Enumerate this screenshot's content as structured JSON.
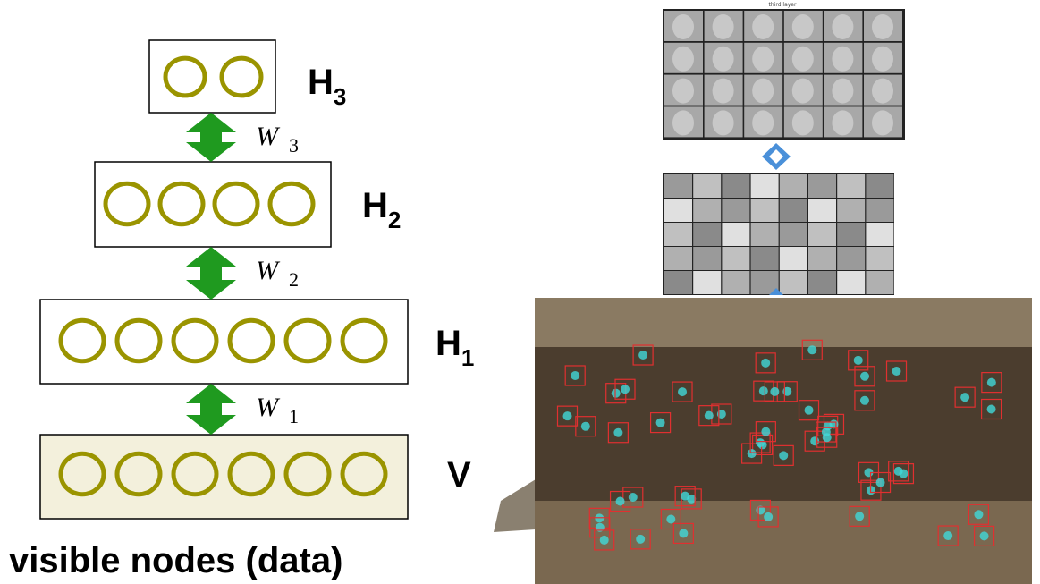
{
  "layers": [
    {
      "name": "H",
      "sub": "3"
    },
    {
      "name": "H",
      "sub": "2"
    },
    {
      "name": "H",
      "sub": "1"
    },
    {
      "name": "V"
    }
  ],
  "weights": [
    {
      "symbol": "W",
      "sub": "3"
    },
    {
      "symbol": "W",
      "sub": "2"
    },
    {
      "symbol": "W",
      "sub": "1"
    }
  ],
  "caption": "visible nodes (data)",
  "images": {
    "top_grid_title": "third layer"
  }
}
